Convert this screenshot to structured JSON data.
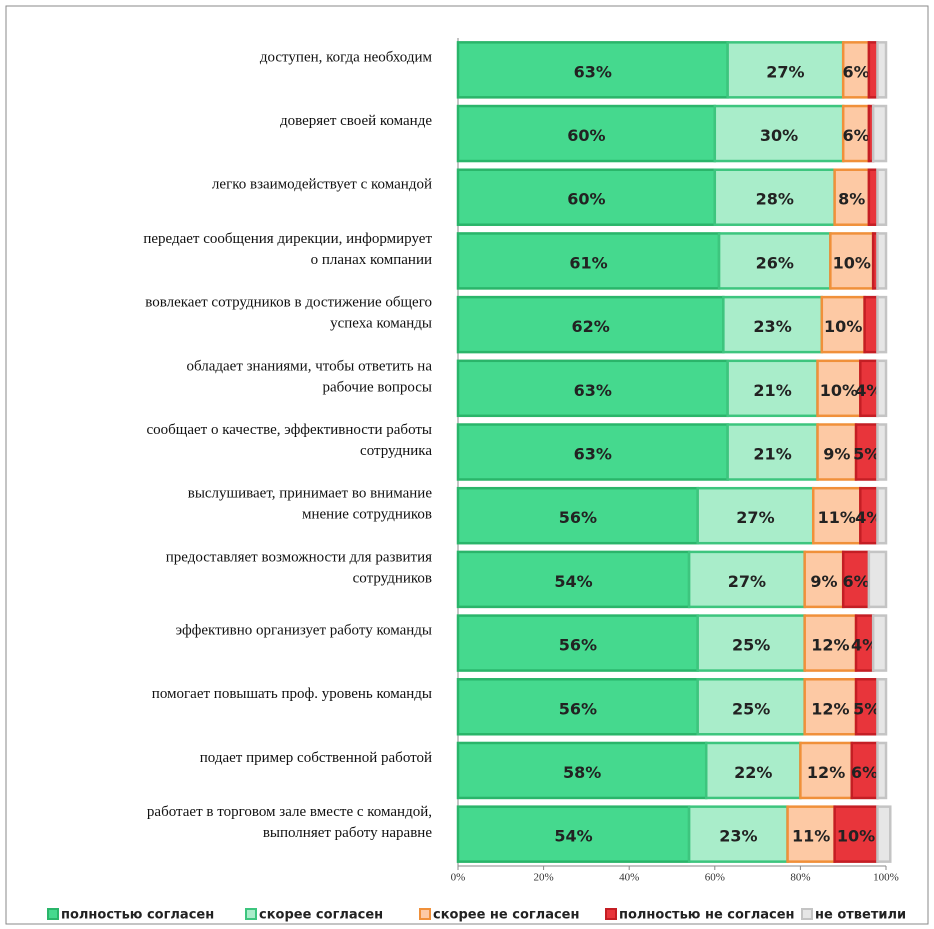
{
  "chart_data": {
    "type": "stacked_bar_horizontal",
    "categories": [
      "доступен, когда необходим",
      "доверяет своей команде",
      "легко взаимодействует с командой",
      "передает сообщения дирекции, информирует\nо планах компании",
      "вовлекает сотрудников в достижение общего\nуспеха команды",
      "обладает знаниями, чтобы ответить на\nрабочие вопросы",
      "сообщает о качестве, эффективности работы\nсотрудника",
      "выслушивает, принимает во внимание\nмнение сотрудников",
      "предоставляет возможности для развития\nсотрудников",
      "эффективно организует работу команды",
      "помогает повышать проф. уровень команды",
      "подает пример собственной работой",
      "работает в торговом зале вместе с командой,\nвыполняет работу наравне"
    ],
    "series": [
      {
        "name": "полностью согласен",
        "color": "#45d98e",
        "values": [
          63,
          60,
          60,
          61,
          62,
          63,
          63,
          56,
          54,
          56,
          56,
          58,
          54
        ],
        "value_labels": [
          "63%",
          "60%",
          "60%",
          "61%",
          "62%",
          "63%",
          "63%",
          "56%",
          "54%",
          "56%",
          "56%",
          "58%",
          "54%"
        ]
      },
      {
        "name": "скорее согласен",
        "color": "#a9edca",
        "values": [
          27,
          30,
          28,
          26,
          23,
          21,
          21,
          27,
          27,
          25,
          25,
          22,
          23
        ],
        "value_labels": [
          "27%",
          "30%",
          "28%",
          "26%",
          "23%",
          "21%",
          "21%",
          "27%",
          "27%",
          "25%",
          "25%",
          "22%",
          "23%"
        ]
      },
      {
        "name": "скорее не согласен",
        "color": "#fdc9a4",
        "values": [
          6,
          6,
          8,
          10,
          10,
          10,
          9,
          11,
          9,
          12,
          12,
          12,
          11
        ],
        "value_labels": [
          "6%",
          "6%",
          "8%",
          "10%",
          "10%",
          "10%",
          "9%",
          "11%",
          "9%",
          "12%",
          "12%",
          "12%",
          "11%"
        ]
      },
      {
        "name": "полностью не согласен",
        "color": "#e8353b",
        "values": [
          2,
          1,
          2,
          1,
          3,
          4,
          5,
          4,
          6,
          4,
          5,
          6,
          10
        ],
        "value_labels": [
          null,
          null,
          null,
          null,
          null,
          "4%",
          "5%",
          "4%",
          "6%",
          "4%",
          "5%",
          "6%",
          "10%"
        ]
      },
      {
        "name": "не ответили",
        "color": "#e6e6e6",
        "values": [
          2,
          3,
          2,
          2,
          2,
          2,
          2,
          2,
          4,
          3,
          2,
          2,
          3
        ]
      }
    ],
    "xlim": [
      0,
      100
    ],
    "xticks": [
      {
        "value": 0,
        "label": "0%"
      },
      {
        "value": 20,
        "label": "20%"
      },
      {
        "value": 40,
        "label": "40%"
      },
      {
        "value": 60,
        "label": "60%"
      },
      {
        "value": 80,
        "label": "80%"
      },
      {
        "value": 100,
        "label": "100%"
      }
    ],
    "legend": "bottom"
  }
}
